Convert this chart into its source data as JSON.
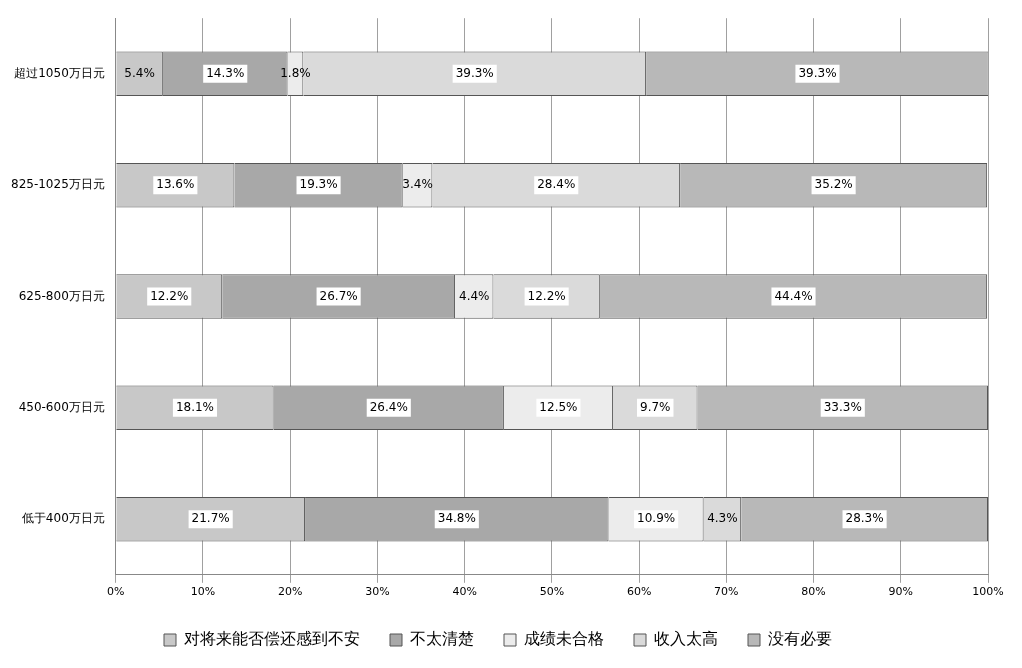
{
  "chart_data": {
    "type": "bar",
    "orientation": "horizontal",
    "stacked": true,
    "categories": [
      "超过1050万日元",
      "825-1025万日元",
      "625-800万日元",
      "450-600万日元",
      "低于400万日元"
    ],
    "series": [
      {
        "name": "对将来能否偿还感到不安",
        "color": "#c8c8c8",
        "values": [
          5.4,
          13.6,
          12.2,
          18.1,
          21.7
        ]
      },
      {
        "name": "不太清楚",
        "color": "#a8a8a8",
        "values": [
          14.3,
          19.3,
          26.7,
          26.4,
          34.8
        ]
      },
      {
        "name": "成绩未合格",
        "color": "#ececec",
        "values": [
          1.8,
          3.4,
          4.4,
          12.5,
          10.9
        ]
      },
      {
        "name": "收入太高",
        "color": "#dadada",
        "values": [
          39.3,
          28.4,
          12.2,
          9.7,
          4.3
        ]
      },
      {
        "name": "没有必要",
        "color": "#b8b8b8",
        "values": [
          39.3,
          35.2,
          44.4,
          33.3,
          28.3
        ]
      }
    ],
    "xlim": [
      0,
      100
    ],
    "xticks": [
      {
        "value": 0,
        "label": "0%"
      },
      {
        "value": 10,
        "label": "10%"
      },
      {
        "value": 20,
        "label": "20%"
      },
      {
        "value": 30,
        "label": "30%"
      },
      {
        "value": 40,
        "label": "40%"
      },
      {
        "value": 50,
        "label": "50%"
      },
      {
        "value": 60,
        "label": "60%"
      },
      {
        "value": 70,
        "label": "70%"
      },
      {
        "value": 80,
        "label": "80%"
      },
      {
        "value": 90,
        "label": "90%"
      },
      {
        "value": 100,
        "label": "100%"
      }
    ],
    "value_labels": [
      [
        "5.4%",
        "13.6%",
        "12.2%",
        "18.1%",
        "21.7%"
      ],
      [
        "14.3%",
        "19.3%",
        "26.7%",
        "26.4%",
        "34.8%"
      ],
      [
        "1.8%",
        "3.4%",
        "4.4%",
        "12.5%",
        "10.9%"
      ],
      [
        "39.3%",
        "28.4%",
        "12.2%",
        "9.7%",
        "4.3%"
      ],
      [
        "39.3%",
        "35.2%",
        "44.4%",
        "33.3%",
        "28.3%"
      ]
    ],
    "grid": "x",
    "legend": "bottom"
  }
}
